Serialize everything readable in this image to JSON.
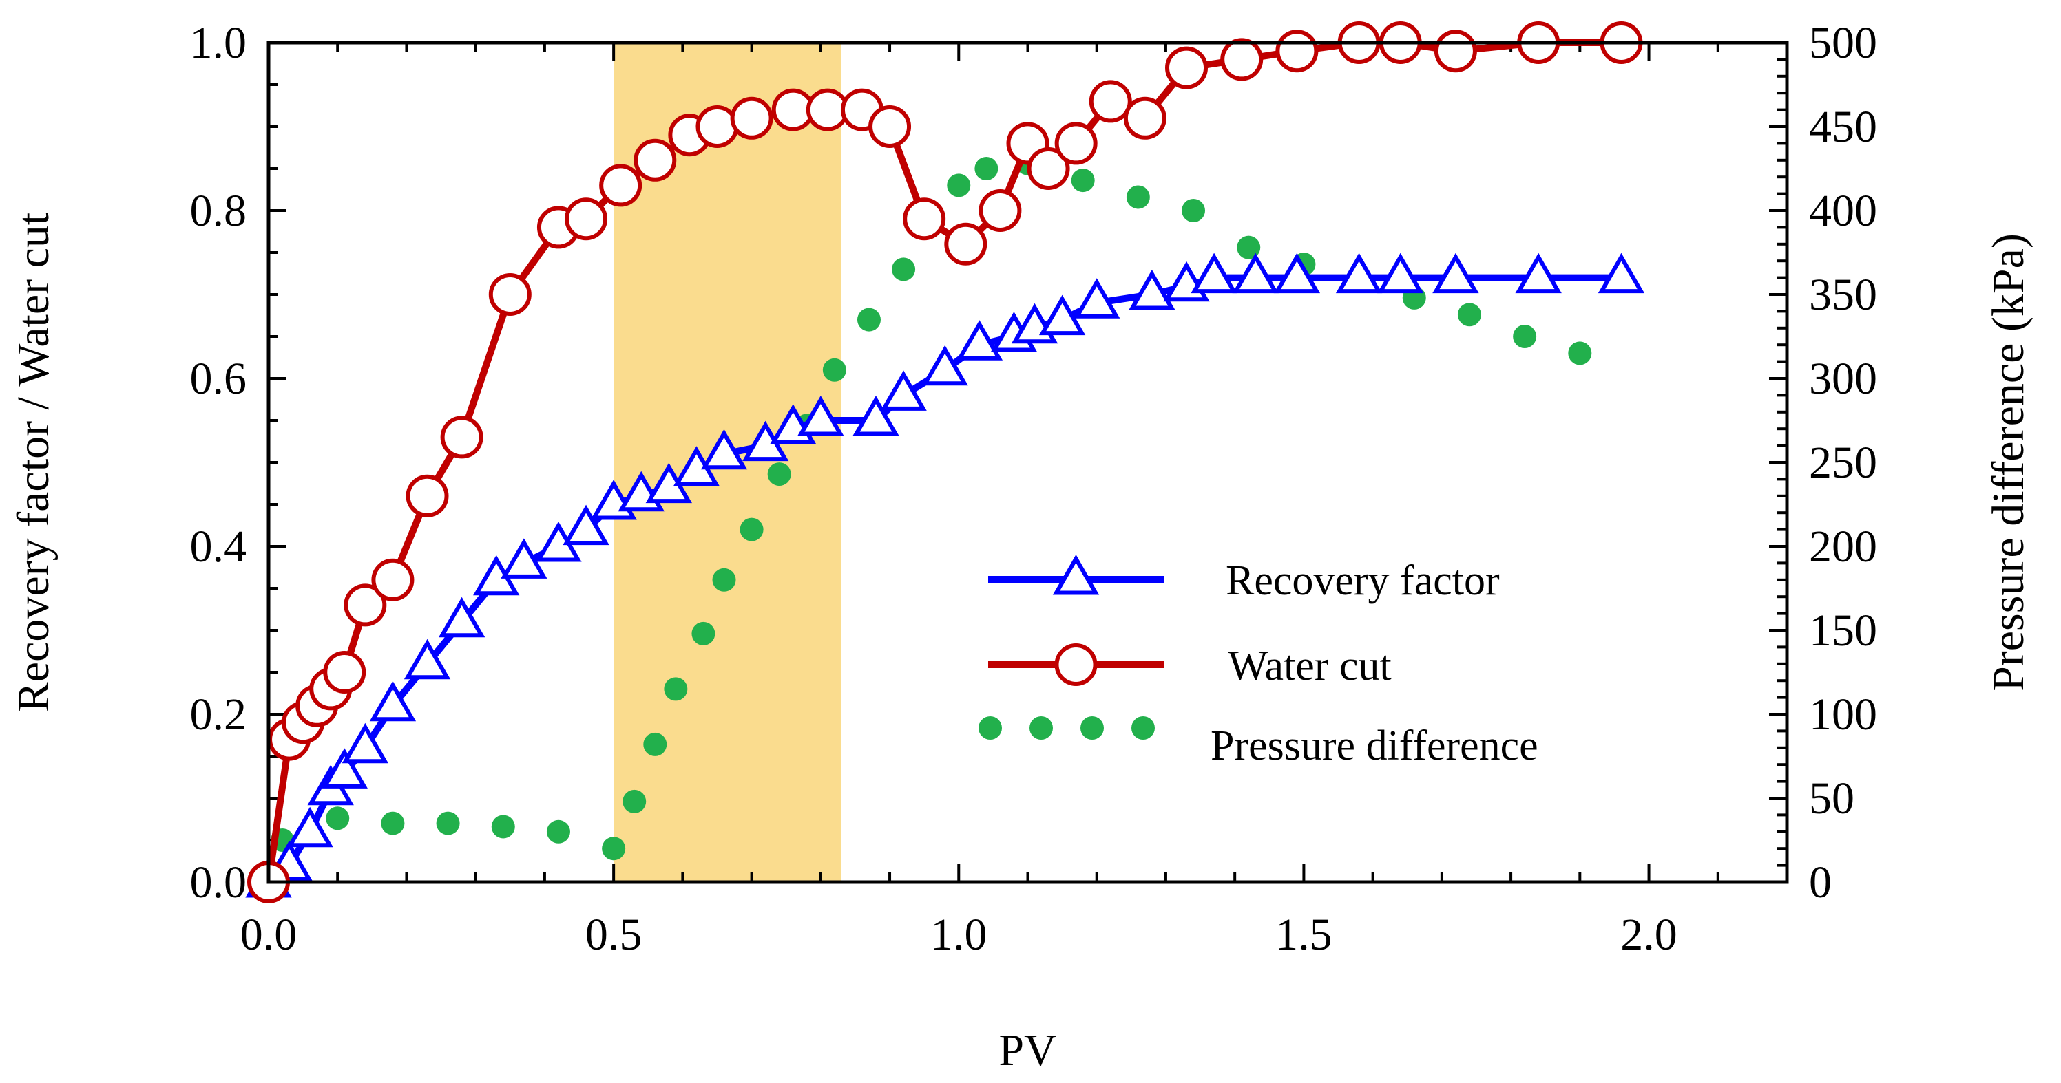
{
  "chart_data": {
    "type": "line",
    "title": "",
    "xlabel": "PV",
    "ylabel": "Recovery factor / Water cut",
    "y2label": "Pressure difference (kPa)",
    "xlim": [
      0,
      2.2
    ],
    "ylim": [
      0,
      1.0
    ],
    "y2lim": [
      0,
      500
    ],
    "x_ticks": [
      "0.0",
      "0.5",
      "1.0",
      "1.5",
      "2.0"
    ],
    "y_ticks": [
      "0.0",
      "0.2",
      "0.4",
      "0.6",
      "0.8",
      "1.0"
    ],
    "y2_ticks": [
      "0",
      "50",
      "100",
      "150",
      "200",
      "250",
      "300",
      "350",
      "400",
      "450",
      "500"
    ],
    "highlight_range": [
      0.5,
      0.83
    ],
    "legend_position": "center-right",
    "series": [
      {
        "name": "Recovery factor",
        "axis": "left",
        "color": "#0000ff",
        "marker": "triangle",
        "x": [
          0.0,
          0.03,
          0.06,
          0.09,
          0.11,
          0.14,
          0.18,
          0.23,
          0.28,
          0.33,
          0.37,
          0.42,
          0.46,
          0.5,
          0.54,
          0.58,
          0.62,
          0.66,
          0.72,
          0.76,
          0.8,
          0.88,
          0.92,
          0.98,
          1.03,
          1.08,
          1.11,
          1.15,
          1.2,
          1.28,
          1.33,
          1.37,
          1.43,
          1.49,
          1.58,
          1.64,
          1.72,
          1.84,
          1.96
        ],
        "y": [
          0.0,
          0.02,
          0.06,
          0.11,
          0.13,
          0.16,
          0.21,
          0.26,
          0.31,
          0.36,
          0.38,
          0.4,
          0.42,
          0.45,
          0.46,
          0.47,
          0.49,
          0.51,
          0.52,
          0.54,
          0.55,
          0.55,
          0.58,
          0.61,
          0.64,
          0.65,
          0.66,
          0.67,
          0.69,
          0.7,
          0.71,
          0.72,
          0.72,
          0.72,
          0.72,
          0.72,
          0.72,
          0.72,
          0.72
        ]
      },
      {
        "name": "Water cut",
        "axis": "left",
        "color": "#c00000",
        "marker": "circle",
        "x": [
          0.0,
          0.03,
          0.05,
          0.07,
          0.09,
          0.11,
          0.14,
          0.18,
          0.23,
          0.28,
          0.35,
          0.42,
          0.46,
          0.51,
          0.56,
          0.61,
          0.65,
          0.7,
          0.76,
          0.81,
          0.86,
          0.9,
          0.95,
          1.01,
          1.06,
          1.1,
          1.13,
          1.17,
          1.22,
          1.27,
          1.33,
          1.41,
          1.49,
          1.58,
          1.64,
          1.72,
          1.84,
          1.96
        ],
        "y": [
          0.0,
          0.17,
          0.19,
          0.21,
          0.23,
          0.25,
          0.33,
          0.36,
          0.46,
          0.53,
          0.7,
          0.78,
          0.79,
          0.83,
          0.86,
          0.89,
          0.9,
          0.91,
          0.92,
          0.92,
          0.92,
          0.9,
          0.79,
          0.76,
          0.8,
          0.88,
          0.85,
          0.88,
          0.93,
          0.91,
          0.97,
          0.98,
          0.99,
          1.0,
          1.0,
          0.99,
          1.0,
          1.0
        ]
      },
      {
        "name": "Pressure difference",
        "axis": "right",
        "color": "#22b04c",
        "marker": "dot",
        "x": [
          0.02,
          0.1,
          0.18,
          0.26,
          0.34,
          0.42,
          0.5,
          0.53,
          0.56,
          0.59,
          0.63,
          0.66,
          0.7,
          0.74,
          0.78,
          0.82,
          0.87,
          0.92,
          0.96,
          1.0,
          1.04,
          1.1,
          1.18,
          1.26,
          1.34,
          1.42,
          1.5,
          1.58,
          1.66,
          1.74,
          1.82,
          1.9
        ],
        "y": [
          25,
          38,
          35,
          35,
          33,
          30,
          20,
          48,
          82,
          115,
          148,
          180,
          210,
          243,
          272,
          305,
          335,
          365,
          397,
          415,
          425,
          428,
          418,
          408,
          400,
          378,
          368,
          358,
          348,
          338,
          325,
          315
        ]
      }
    ]
  }
}
